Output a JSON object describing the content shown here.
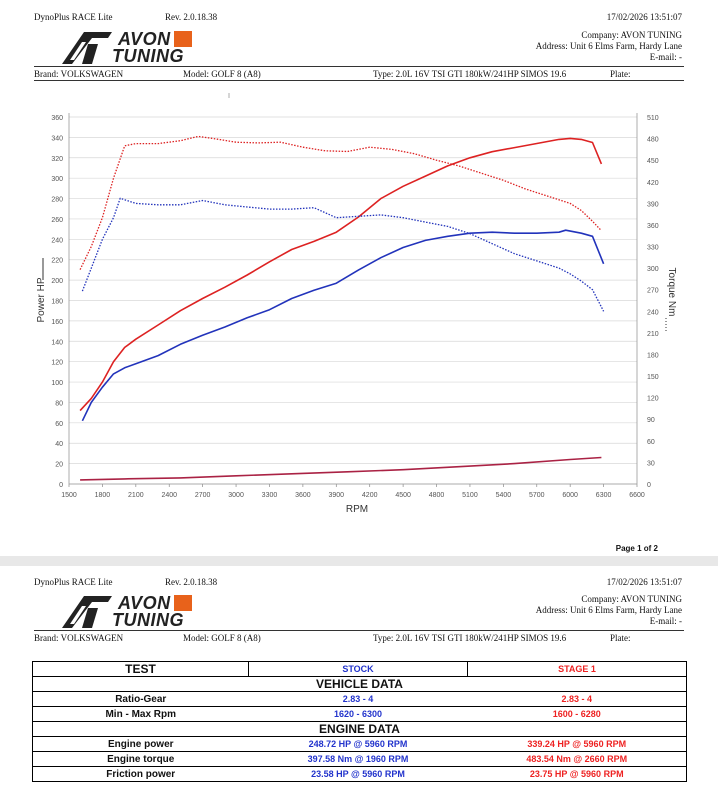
{
  "header": {
    "app_name": "DynoPlus RACE Lite",
    "revision": "Rev. 2.0.18.38",
    "datetime": "17/02/2026  13:51:07",
    "logo_line1": "AVON",
    "logo_line2": "TUNING",
    "company": "Company: AVON TUNING",
    "address": "Address: Unit 6 Elms Farm, Hardy Lane",
    "email": "E-mail: -"
  },
  "vehicle": {
    "brand": "Brand: VOLKSWAGEN",
    "model": "Model: GOLF 8 (A8)",
    "type": "Type: 2.0L 16V TSI GTI 180kW/241HP SIMOS 19.6",
    "plate": "Plate:"
  },
  "chart_data": {
    "type": "line",
    "xlabel": "RPM",
    "ylabel": "Power HP",
    "y2label": "Torque Nm",
    "xlim": [
      1500,
      6600
    ],
    "ylim": [
      0,
      360
    ],
    "y2lim": [
      0,
      510
    ],
    "x_ticks": [
      1500,
      1800,
      2100,
      2400,
      2700,
      3000,
      3300,
      3600,
      3900,
      4200,
      4500,
      4800,
      5100,
      5400,
      5700,
      6000,
      6300,
      6600
    ],
    "y_ticks": [
      0,
      20,
      40,
      60,
      80,
      100,
      120,
      140,
      160,
      180,
      200,
      220,
      240,
      260,
      280,
      300,
      320,
      340,
      360
    ],
    "y2_ticks": [
      0,
      30,
      60,
      90,
      120,
      150,
      180,
      210,
      240,
      270,
      300,
      330,
      360,
      390,
      420,
      450,
      480,
      510
    ],
    "series": [
      {
        "color": "#dd2222",
        "style": "solid",
        "axis": "left",
        "x": [
          1600,
          1700,
          1800,
          1900,
          2000,
          2100,
          2300,
          2500,
          2700,
          2900,
          3100,
          3300,
          3500,
          3700,
          3900,
          4100,
          4300,
          4500,
          4700,
          4900,
          5100,
          5300,
          5500,
          5700,
          5900,
          6000,
          6100,
          6200,
          6280
        ],
        "y": [
          72,
          84,
          100,
          120,
          134,
          142,
          156,
          170,
          182,
          193,
          205,
          218,
          230,
          238,
          247,
          262,
          280,
          292,
          302,
          312,
          320,
          326,
          330,
          334,
          338,
          339,
          338,
          335,
          314
        ]
      },
      {
        "color": "#2233bb",
        "style": "solid",
        "axis": "left",
        "x": [
          1620,
          1700,
          1800,
          1900,
          2000,
          2100,
          2300,
          2500,
          2700,
          2900,
          3100,
          3300,
          3500,
          3700,
          3900,
          4100,
          4300,
          4500,
          4700,
          4900,
          5100,
          5300,
          5500,
          5700,
          5900,
          5960,
          6100,
          6200,
          6300
        ],
        "y": [
          62,
          80,
          95,
          108,
          114,
          118,
          126,
          137,
          146,
          154,
          163,
          171,
          182,
          190,
          197,
          210,
          222,
          232,
          239,
          243,
          246,
          247,
          246,
          246,
          247,
          249,
          246,
          243,
          216
        ]
      },
      {
        "color": "#dd2222",
        "style": "dotted",
        "axis": "right",
        "x": [
          1600,
          1700,
          1800,
          1900,
          2000,
          2100,
          2300,
          2500,
          2660,
          2800,
          3000,
          3200,
          3400,
          3600,
          3800,
          4000,
          4200,
          4400,
          4600,
          4800,
          5000,
          5200,
          5400,
          5600,
          5800,
          6000,
          6100,
          6200,
          6280
        ],
        "y": [
          298,
          330,
          370,
          425,
          470,
          473,
          473,
          477,
          483,
          480,
          475,
          474,
          475,
          468,
          463,
          462,
          468,
          465,
          459,
          450,
          442,
          432,
          422,
          410,
          400,
          390,
          380,
          365,
          352
        ]
      },
      {
        "color": "#2233bb",
        "style": "dotted",
        "axis": "right",
        "x": [
          1620,
          1700,
          1800,
          1900,
          1960,
          2100,
          2300,
          2500,
          2700,
          2900,
          3100,
          3300,
          3500,
          3700,
          3900,
          4100,
          4300,
          4500,
          4700,
          4900,
          5100,
          5300,
          5500,
          5700,
          5900,
          6000,
          6100,
          6200,
          6300
        ],
        "y": [
          268,
          300,
          340,
          370,
          397,
          390,
          388,
          388,
          394,
          388,
          385,
          382,
          382,
          384,
          370,
          372,
          374,
          370,
          364,
          358,
          348,
          334,
          320,
          310,
          300,
          292,
          282,
          270,
          240
        ]
      },
      {
        "color": "#aa2244",
        "style": "solid",
        "axis": "left",
        "x": [
          1600,
          2000,
          2500,
          3000,
          3500,
          4000,
          4500,
          5000,
          5500,
          6000,
          6280
        ],
        "y": [
          4,
          5,
          6,
          8,
          10,
          12,
          14,
          17,
          20,
          24,
          26
        ]
      }
    ]
  },
  "page1_footer": "Page 1 of 2",
  "table": {
    "col_test": "TEST",
    "col_stock": "STOCK",
    "col_stage": "STAGE 1",
    "section_vehicle": "VEHICLE DATA",
    "section_engine": "ENGINE DATA",
    "rows_vehicle": [
      {
        "label": "Ratio-Gear",
        "stock": "2.83 - 4",
        "stage": "2.83 - 4"
      },
      {
        "label": "Min - Max Rpm",
        "stock": "1620 - 6300",
        "stage": "1600 - 6280"
      }
    ],
    "rows_engine": [
      {
        "label": "Engine power",
        "stock": "248.72 HP @ 5960 RPM",
        "stage": "339.24 HP @ 5960 RPM"
      },
      {
        "label": "Engine torque",
        "stock": "397.58 Nm @ 1960 RPM",
        "stage": "483.54 Nm @ 2660 RPM"
      },
      {
        "label": "Friction power",
        "stock": "23.58 HP @ 5960 RPM",
        "stage": "23.75 HP @ 5960 RPM"
      }
    ]
  }
}
